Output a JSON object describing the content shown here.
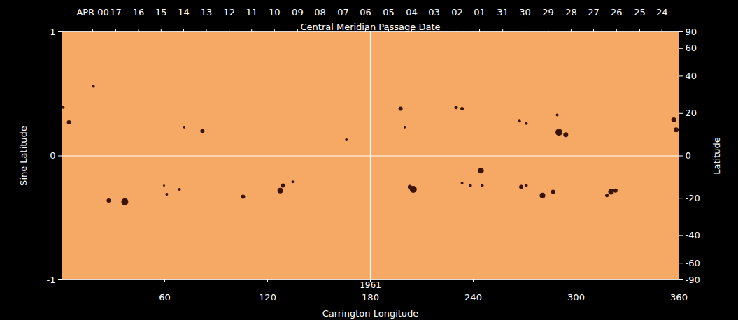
{
  "chart_data": {
    "type": "scatter",
    "x_label": "Carrington Longitude",
    "y_label": "Sine Latitude",
    "y2_label": "Latitude",
    "x2_label": "Central Meridian Passage Date",
    "annotations": [
      {
        "text": "1961",
        "x": 180
      }
    ],
    "reference_lines": {
      "x": [
        180
      ],
      "y": [
        0
      ]
    },
    "xlim": [
      0,
      360
    ],
    "xticks": [
      60,
      120,
      180,
      240,
      300,
      360
    ],
    "ylim": [
      -1,
      1
    ],
    "yticks": [
      -1,
      0,
      1
    ],
    "y2lim": [
      -90,
      90
    ],
    "y2ticks": [
      90,
      60,
      40,
      20,
      0,
      -20,
      -40,
      -60,
      -90
    ],
    "x2ticks": [
      {
        "value": 18,
        "label": "APR 00"
      },
      {
        "value": 31.4,
        "label": "17"
      },
      {
        "value": 44.7,
        "label": "16"
      },
      {
        "value": 57.9,
        "label": "15"
      },
      {
        "value": 71.0,
        "label": "14"
      },
      {
        "value": 84.3,
        "label": "13"
      },
      {
        "value": 97.6,
        "label": "12"
      },
      {
        "value": 110.7,
        "label": "11"
      },
      {
        "value": 124.0,
        "label": "10"
      },
      {
        "value": 137.5,
        "label": "09"
      },
      {
        "value": 150.6,
        "label": "08"
      },
      {
        "value": 164.1,
        "label": "07"
      },
      {
        "value": 177.1,
        "label": "06"
      },
      {
        "value": 190.6,
        "label": "05"
      },
      {
        "value": 204.1,
        "label": "04"
      },
      {
        "value": 217.1,
        "label": "03"
      },
      {
        "value": 230.6,
        "label": "02"
      },
      {
        "value": 243.7,
        "label": "01"
      },
      {
        "value": 257.2,
        "label": "31"
      },
      {
        "value": 270.2,
        "label": "30"
      },
      {
        "value": 283.7,
        "label": "29"
      },
      {
        "value": 297.1,
        "label": "28"
      },
      {
        "value": 310.2,
        "label": "27"
      },
      {
        "value": 323.6,
        "label": "26"
      },
      {
        "value": 337.1,
        "label": "25"
      },
      {
        "value": 350.1,
        "label": "24"
      }
    ],
    "x": [
      0.8,
      4.1,
      18.4,
      82,
      71.4,
      166,
      197.6,
      200,
      230,
      233.5,
      267,
      271,
      289,
      290,
      294,
      357,
      358.4,
      27.3,
      36.7,
      59.6,
      61.2,
      68.6,
      105.7,
      127.4,
      129,
      134.7,
      205,
      203,
      233.5,
      238.4,
      244.5,
      245.3,
      268,
      271,
      280.4,
      286.6,
      320.4,
      318,
      323
    ],
    "y": [
      0.39,
      0.27,
      0.56,
      0.2,
      0.23,
      0.13,
      0.38,
      0.23,
      0.39,
      0.38,
      0.28,
      0.26,
      0.33,
      0.19,
      0.17,
      0.29,
      0.21,
      -0.36,
      -0.37,
      -0.24,
      -0.31,
      -0.27,
      -0.33,
      -0.28,
      -0.24,
      -0.21,
      -0.27,
      -0.25,
      -0.22,
      -0.24,
      -0.12,
      -0.24,
      -0.25,
      -0.24,
      -0.32,
      -0.29,
      -0.29,
      -0.32,
      -0.28
    ],
    "size": [
      2,
      3,
      2,
      3,
      1.5,
      2,
      3,
      1.5,
      2.5,
      2.5,
      2,
      2,
      2,
      5,
      3.5,
      3.5,
      3.5,
      3,
      5,
      1.5,
      2,
      2,
      3,
      4,
      3,
      2,
      5,
      3,
      2,
      2,
      4,
      2,
      3,
      2,
      4,
      3,
      4,
      2.5,
      3
    ],
    "color": "#3a1404",
    "marker": "circle"
  }
}
